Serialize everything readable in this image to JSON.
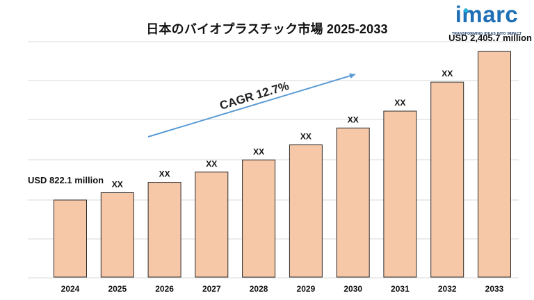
{
  "title": "日本のバイオプラスチック市場 2025-2033",
  "logo": {
    "name": "imarc",
    "tagline": "TRANSFORMING IDEAS INTO IMPACT",
    "colors": {
      "word": "#1f6fb5",
      "dot": "#27b5d6"
    }
  },
  "chart_data": {
    "type": "bar",
    "title": "日本のバイオプラスチック市場 2025-2033",
    "categories": [
      "2024",
      "2025",
      "2026",
      "2027",
      "2028",
      "2029",
      "2030",
      "2031",
      "2032",
      "2033"
    ],
    "values": [
      822.1,
      900,
      1010,
      1120,
      1250,
      1410,
      1590,
      1770,
      2080,
      2405.7
    ],
    "data_labels": [
      "",
      "XX",
      "XX",
      "XX",
      "XX",
      "XX",
      "XX",
      "XX",
      "XX",
      ""
    ],
    "value_callouts": {
      "first": "USD 822.1 million",
      "last": "USD 2,405.7 million"
    },
    "annotation": "CAGR 12.7%",
    "xlabel": "",
    "ylabel": "",
    "ylim": [
      0,
      2600
    ],
    "grid": true,
    "colors": {
      "bar": "#f7c8a8",
      "bar_edge": "#2a2a2a",
      "arrow": "#5b9bd5",
      "grid": "#d9d9d9"
    }
  }
}
